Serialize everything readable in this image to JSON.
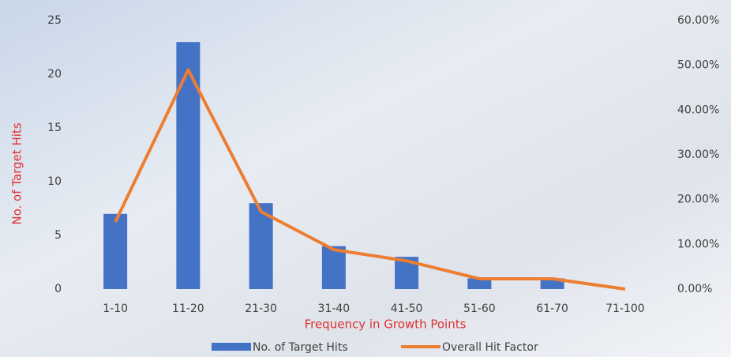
{
  "chart_data": {
    "type": "bar",
    "x_label": "Frequency in Growth Points",
    "y_label": "No. of Target Hits",
    "categories": [
      "1-10",
      "11-20",
      "21-30",
      "31-40",
      "41-50",
      "51-60",
      "61-70",
      "71-100"
    ],
    "series": [
      {
        "name": "No. of Target Hits",
        "type": "bar",
        "color": "#4472c4",
        "values": [
          7,
          23,
          8,
          4,
          3,
          1,
          1,
          0
        ]
      },
      {
        "name": "Overall Hit Factor",
        "type": "line",
        "axis": "y2",
        "color": "#ed7d31",
        "values": [
          15,
          49,
          17.3,
          8.8,
          6.3,
          2.3,
          2.3,
          0
        ]
      }
    ],
    "ylim": [
      0,
      25
    ],
    "yticks": [
      0,
      5,
      10,
      15,
      20,
      25
    ],
    "y2lim": [
      0,
      60
    ],
    "y2ticks": [
      {
        "value": 0,
        "label": "0.00%"
      },
      {
        "value": 10,
        "label": "10.00%"
      },
      {
        "value": 20,
        "label": "20.00%"
      },
      {
        "value": 30,
        "label": "30.00%"
      },
      {
        "value": 40,
        "label": "40.00%"
      },
      {
        "value": 50,
        "label": "50.00%"
      },
      {
        "value": 60,
        "label": "60.00%"
      }
    ],
    "grid": false,
    "legend": "bottom"
  }
}
